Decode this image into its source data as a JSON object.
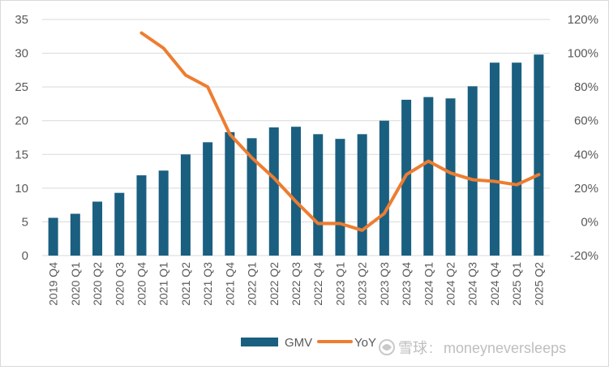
{
  "chart_data": {
    "type": "bar",
    "categories": [
      "2019 Q4",
      "2020 Q1",
      "2020 Q2",
      "2020 Q3",
      "2020 Q4",
      "2021 Q1",
      "2021 Q2",
      "2021 Q3",
      "2021 Q4",
      "2022 Q1",
      "2022 Q2",
      "2022 Q3",
      "2022 Q4",
      "2023 Q1",
      "2023 Q2",
      "2023 Q3",
      "2023 Q4",
      "2024 Q1",
      "2024 Q2",
      "2024 Q3",
      "2024 Q4",
      "2025 Q1",
      "2025 Q2"
    ],
    "series": [
      {
        "name": "GMV",
        "type": "bar",
        "axis": "left",
        "color": "#1a5f80",
        "values": [
          5.6,
          6.2,
          8.0,
          9.3,
          11.9,
          12.6,
          15.0,
          16.8,
          18.3,
          17.4,
          19.0,
          19.1,
          18.0,
          17.3,
          18.0,
          20.0,
          23.1,
          23.5,
          23.3,
          25.1,
          28.6,
          28.6,
          29.8
        ]
      },
      {
        "name": "YoY",
        "type": "line",
        "axis": "right",
        "color": "#ed7d31",
        "values": [
          null,
          null,
          null,
          null,
          112,
          103,
          87,
          80,
          52,
          38,
          26,
          12,
          -1,
          -1,
          -5,
          5,
          28,
          36,
          29,
          25,
          24,
          22,
          28
        ]
      }
    ],
    "ylim": [
      0,
      35
    ],
    "yticks": [
      "0",
      "5",
      "10",
      "15",
      "20",
      "25",
      "30",
      "35"
    ],
    "y2lim": [
      -20,
      120
    ],
    "y2ticks": [
      "-20%",
      "0%",
      "20%",
      "40%",
      "60%",
      "80%",
      "100%",
      "120%"
    ],
    "grid": true,
    "legend": "bottom"
  },
  "watermark": {
    "brand": "雪球",
    "separator": ":",
    "user": "moneyneversleeps",
    "icon": "snowball-logo-icon"
  }
}
